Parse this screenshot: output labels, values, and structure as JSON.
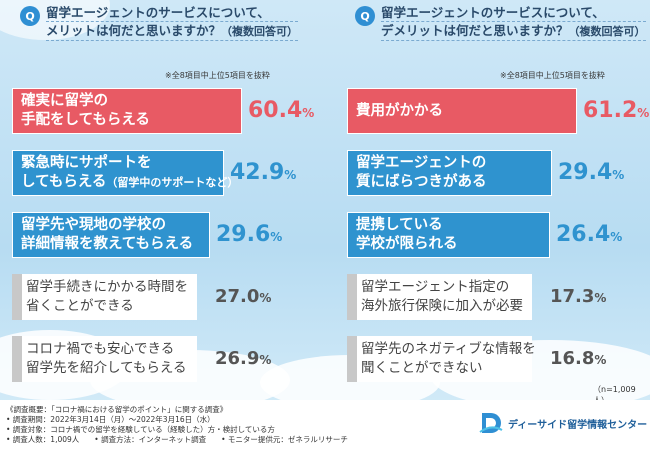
{
  "chart_data": [
    {
      "type": "bar",
      "orientation": "horizontal",
      "title": [
        "留学エージェントのサービスについて、",
        "メリットは何だと思いますか？"
      ],
      "title_suffix": "（複数回答可）",
      "note": "※全8項目中上位5項目を抜粋",
      "unit": "%",
      "categories": [
        [
          "確実に留学の",
          "手配をしてもらえる"
        ],
        [
          "緊急時にサポートを",
          "してもらえる"
        ],
        [
          "留学先や現地の学校の",
          "詳細情報を教えてもらえる"
        ],
        [
          "留学手続きにかかる時間を",
          "省くことができる"
        ],
        [
          "コロナ禍でも安心できる",
          "留学先を紹介してもらえる"
        ]
      ],
      "category_notes": [
        "",
        "（留学中のサポートなど）",
        "",
        "",
        ""
      ],
      "values": [
        60.4,
        42.9,
        29.6,
        27.0,
        26.9
      ],
      "value_labels": [
        "60.4",
        "42.9",
        "29.6",
        "27.0",
        "26.9"
      ],
      "colors": [
        "#e85a64",
        "#2f93cf",
        "#2f93cf",
        "#c8c8c8",
        "#c8c8c8"
      ]
    },
    {
      "type": "bar",
      "orientation": "horizontal",
      "title": [
        "留学エージェントのサービスについて、",
        "デメリットは何だと思いますか？"
      ],
      "title_suffix": "（複数回答可）",
      "note": "※全8項目中上位5項目を抜粋",
      "unit": "%",
      "categories": [
        [
          "費用がかかる"
        ],
        [
          "留学エージェントの",
          "質にばらつきがある"
        ],
        [
          "提携している",
          "学校が限られる"
        ],
        [
          "留学エージェント指定の",
          "海外旅行保険に加入が必要"
        ],
        [
          "留学先のネガティブな情報を",
          "聞くことができない"
        ]
      ],
      "category_notes": [
        "",
        "",
        "",
        "",
        ""
      ],
      "values": [
        61.2,
        29.4,
        26.4,
        17.3,
        16.8
      ],
      "value_labels": [
        "61.2",
        "29.4",
        "26.4",
        "17.3",
        "16.8"
      ],
      "colors": [
        "#e85a64",
        "#2f93cf",
        "#2f93cf",
        "#c8c8c8",
        "#c8c8c8"
      ],
      "sample_size": "（n=1,009人）"
    }
  ],
  "footer": {
    "lines": [
      "《調査概要：「コロナ禍における留学のポイント」に関する調査》",
      "• 調査期間：2022年3月14日（月）～2022年3月16日（水）",
      "• 調査対象：コロナ禍での留学を経験している（経験した）方・検討している方",
      "• 調査人数：1,009人　　• 調査方法：インターネット調査　　• モニター提供元：ゼネラルリサーチ"
    ],
    "logo_text": "ディーサイド留学情報センター"
  },
  "icons": {
    "question": "Q",
    "logo": "d-side-logo-icon"
  }
}
